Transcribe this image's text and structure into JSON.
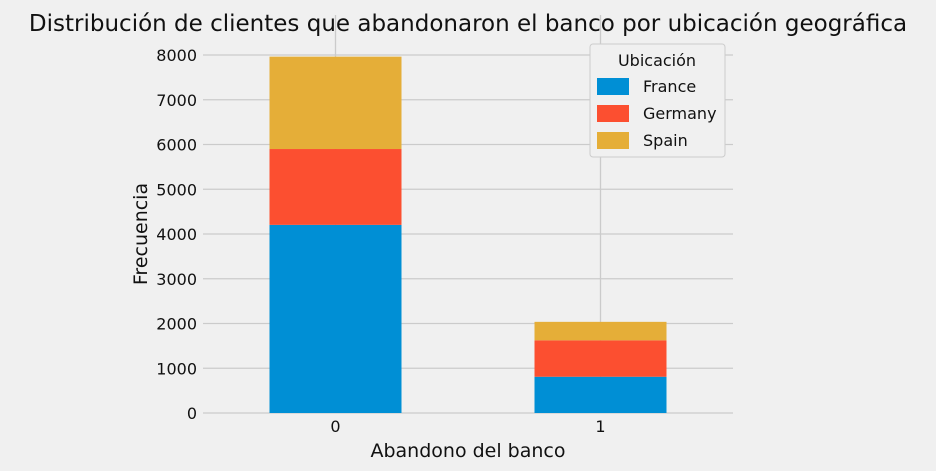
{
  "chart_data": {
    "type": "bar",
    "stacked": true,
    "title": "Distribución de clientes que abandonaron el banco por ubicación geográfica",
    "xlabel": "Abandono del banco",
    "ylabel": "Frecuencia",
    "categories": [
      "0",
      "1"
    ],
    "series": [
      {
        "name": "France",
        "values": [
          4204,
          810
        ],
        "color": "#008fd5"
      },
      {
        "name": "Germany",
        "values": [
          1695,
          814
        ],
        "color": "#fc4f30"
      },
      {
        "name": "Spain",
        "values": [
          2064,
          413
        ],
        "color": "#e5ae38"
      }
    ],
    "ylim": [
      0,
      8000
    ],
    "yticks": [
      0,
      1000,
      2000,
      3000,
      4000,
      5000,
      6000,
      7000,
      8000
    ],
    "grid": true,
    "legend": {
      "title": "Ubicación",
      "placement": "top-right"
    }
  },
  "colors": {
    "background": "#f0f0f0",
    "grid": "#cbcbcb"
  }
}
